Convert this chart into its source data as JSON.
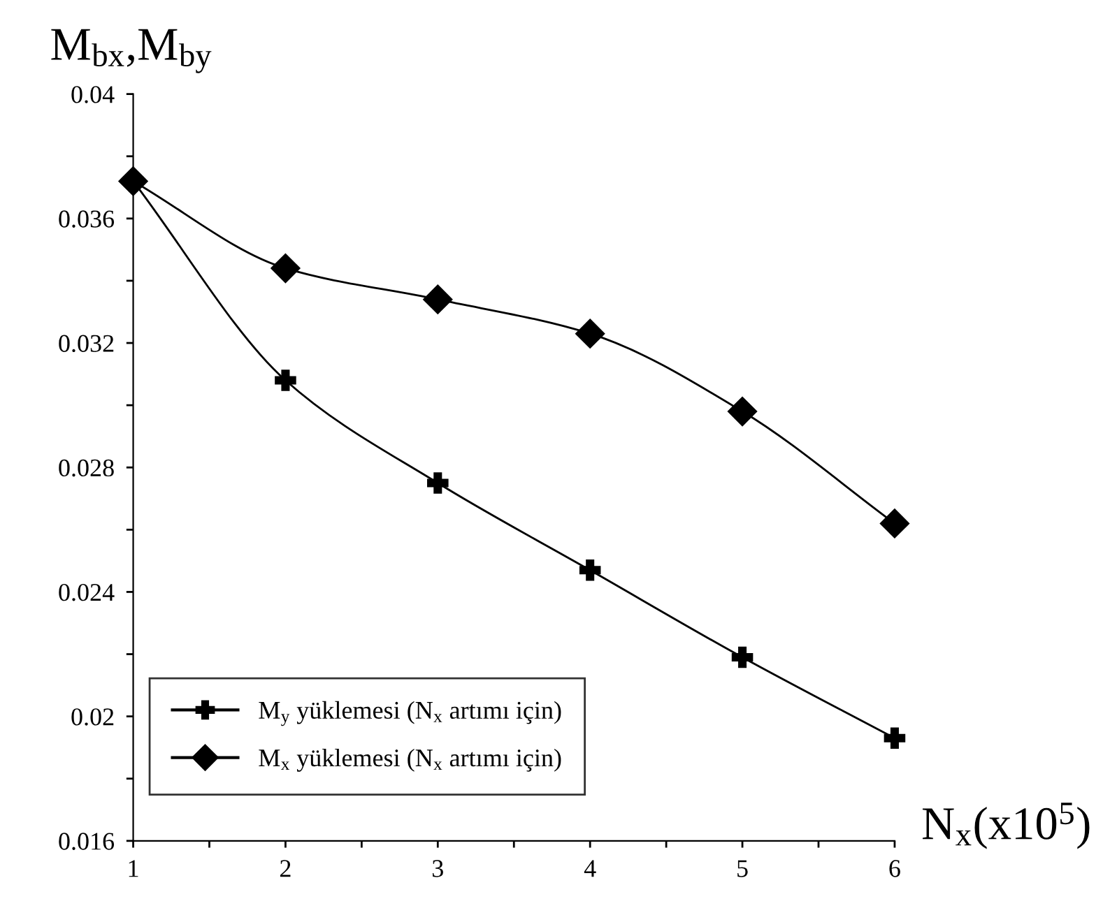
{
  "chart_data": {
    "type": "line",
    "ylabel": "M$_{bx}$,M$_{by}$",
    "xlabel": "N$_{x}$(x10$^{5}$)",
    "x": [
      1,
      2,
      3,
      4,
      5,
      6
    ],
    "series": [
      {
        "name": "M$_{y}$ yüklemesi (N$_{x}$ artımı için)",
        "color": "#000000",
        "marker": "cross",
        "values": [
          0.0372,
          0.0308,
          0.0275,
          0.0247,
          0.0219,
          0.0193
        ]
      },
      {
        "name": "M$_{x}$ yüklemesi (N$_{x}$ artımı için)",
        "color": "#000000",
        "marker": "diamond",
        "values": [
          0.0372,
          0.0344,
          0.0334,
          0.0323,
          0.0298,
          0.0262
        ]
      }
    ],
    "xlim": [
      1,
      6
    ],
    "xticks": [
      1,
      {
        "value": 1.5,
        "label": null
      },
      2,
      {
        "value": 2.5,
        "label": null
      },
      3,
      {
        "value": 3.5,
        "label": null
      },
      4,
      {
        "value": 4.5,
        "label": null
      },
      5,
      {
        "value": 5.5,
        "label": null
      },
      6
    ],
    "ylim": [
      0.016,
      0.04
    ],
    "yticks": [
      0.016,
      {
        "value": 0.018,
        "label": null
      },
      0.02,
      {
        "value": 0.022,
        "label": null
      },
      0.024,
      {
        "value": 0.026,
        "label": null
      },
      0.028,
      {
        "value": 0.03,
        "label": null
      },
      0.032,
      {
        "value": 0.034,
        "label": null
      },
      0.036,
      {
        "value": 0.038,
        "label": null
      },
      0.04
    ],
    "grid": false,
    "legend": "bottom left",
    "line_style": "solid"
  }
}
